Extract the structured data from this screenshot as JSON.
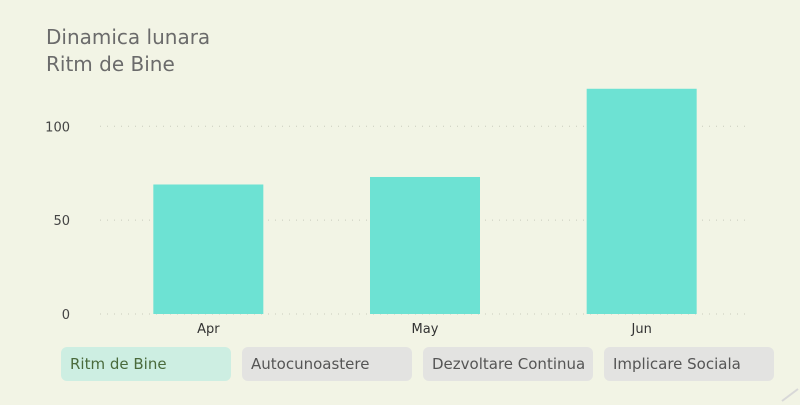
{
  "header": {
    "title": "Dinamica lunara",
    "subtitle": "Ritm de Bine"
  },
  "tabs": [
    {
      "label": "Ritm de Bine",
      "active": true
    },
    {
      "label": "Autocunoastere",
      "active": false
    },
    {
      "label": "Dezvoltare Continua",
      "active": false
    },
    {
      "label": "Implicare Sociala",
      "active": false
    }
  ],
  "colors": {
    "bar": "#6de2d3",
    "background": "#f2f4e5",
    "active_tab": "#cdeee2",
    "tab": "#e3e3e1"
  },
  "chart_data": {
    "type": "bar",
    "categories": [
      "Apr",
      "May",
      "Jun"
    ],
    "values": [
      69,
      73,
      120
    ],
    "ylim": [
      0,
      130
    ],
    "yticks": [
      0,
      50,
      100
    ],
    "grid": true,
    "legend": "none"
  }
}
